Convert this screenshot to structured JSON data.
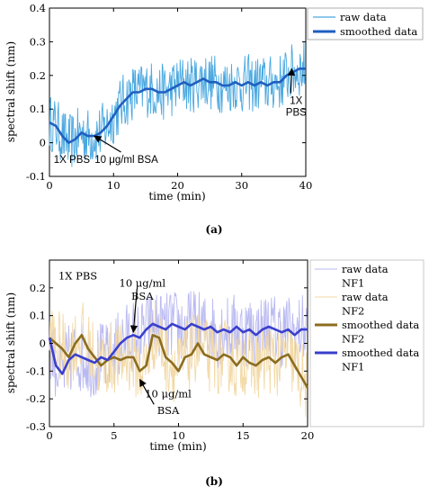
{
  "panel_a_caption": "(a)",
  "panel_b_caption": "(b)",
  "chart_data": [
    {
      "type": "line",
      "panel": "a",
      "xlabel": "time (min)",
      "ylabel": "spectral shift (nm)",
      "xlim": [
        0,
        40
      ],
      "ylim": [
        -0.1,
        0.4
      ],
      "xticks": [
        0,
        10,
        20,
        30,
        40
      ],
      "yticks": [
        -0.1,
        0,
        0.1,
        0.2,
        0.3,
        0.4
      ],
      "legend_position": "top-right",
      "x": [
        0,
        1,
        2,
        3,
        4,
        5,
        6,
        7,
        8,
        9,
        10,
        11,
        12,
        13,
        14,
        15,
        16,
        17,
        18,
        19,
        20,
        21,
        22,
        23,
        24,
        25,
        26,
        27,
        28,
        29,
        30,
        31,
        32,
        33,
        34,
        35,
        36,
        37,
        38,
        39,
        40
      ],
      "series": [
        {
          "name": "raw data",
          "color": "#4aa8e0",
          "style": "noisy",
          "values": [
            0.06,
            0.05,
            0.02,
            0.0,
            0.01,
            0.03,
            0.02,
            0.02,
            0.03,
            0.05,
            0.08,
            0.11,
            0.13,
            0.15,
            0.15,
            0.16,
            0.16,
            0.15,
            0.15,
            0.16,
            0.17,
            0.18,
            0.17,
            0.18,
            0.19,
            0.18,
            0.18,
            0.17,
            0.17,
            0.18,
            0.17,
            0.18,
            0.17,
            0.18,
            0.17,
            0.18,
            0.18,
            0.2,
            0.21,
            0.22,
            0.22
          ]
        },
        {
          "name": "smoothed data",
          "color": "#1f5fbf",
          "style": "thick",
          "values": [
            0.06,
            0.05,
            0.02,
            0.0,
            0.01,
            0.03,
            0.02,
            0.02,
            0.03,
            0.05,
            0.08,
            0.11,
            0.13,
            0.15,
            0.15,
            0.16,
            0.16,
            0.15,
            0.15,
            0.16,
            0.17,
            0.18,
            0.17,
            0.18,
            0.19,
            0.18,
            0.18,
            0.17,
            0.17,
            0.18,
            0.17,
            0.18,
            0.17,
            0.18,
            0.17,
            0.18,
            0.18,
            0.2,
            0.21,
            0.22,
            0.22
          ]
        }
      ],
      "annotations": [
        {
          "text": "1X PBS",
          "x": 3.5,
          "y": -0.06
        },
        {
          "text": "10 μg/ml BSA",
          "x": 12,
          "y": -0.06,
          "arrow_to": [
            7,
            0.02
          ]
        },
        {
          "text": "1X",
          "x": 38.5,
          "y": 0.115,
          "arrow_to": [
            37.8,
            0.22
          ]
        },
        {
          "text": "PBS",
          "x": 38.5,
          "y": 0.08
        }
      ]
    },
    {
      "type": "line",
      "panel": "b",
      "xlabel": "time (min)",
      "ylabel": "spectral shift (nm)",
      "xlim": [
        0,
        20
      ],
      "ylim": [
        -0.3,
        0.3
      ],
      "xticks": [
        0,
        5,
        10,
        15,
        20
      ],
      "yticks": [
        -0.3,
        -0.2,
        -0.1,
        0,
        0.1,
        0.2
      ],
      "legend_position": "outside-right",
      "x": [
        0,
        0.5,
        1,
        1.5,
        2,
        2.5,
        3,
        3.5,
        4,
        4.5,
        5,
        5.5,
        6,
        6.5,
        7,
        7.5,
        8,
        8.5,
        9,
        9.5,
        10,
        10.5,
        11,
        11.5,
        12,
        12.5,
        13,
        13.5,
        14,
        14.5,
        15,
        15.5,
        16,
        16.5,
        17,
        17.5,
        18,
        18.5,
        19,
        19.5,
        20
      ],
      "series": [
        {
          "name": "raw data NF1",
          "color": "#b9b9f2",
          "style": "noisy",
          "values": [
            0.02,
            -0.08,
            -0.11,
            -0.06,
            -0.04,
            -0.05,
            -0.06,
            -0.07,
            -0.05,
            -0.06,
            -0.03,
            0.0,
            0.02,
            0.03,
            0.02,
            0.05,
            0.07,
            0.06,
            0.05,
            0.07,
            0.06,
            0.05,
            0.07,
            0.06,
            0.05,
            0.06,
            0.04,
            0.05,
            0.04,
            0.06,
            0.04,
            0.05,
            0.03,
            0.05,
            0.06,
            0.05,
            0.04,
            0.05,
            0.03,
            0.05,
            0.05
          ]
        },
        {
          "name": "raw data NF2",
          "color": "#f2d9a6",
          "style": "noisy",
          "values": [
            0.02,
            0.0,
            -0.02,
            -0.05,
            0.0,
            0.03,
            -0.02,
            -0.05,
            -0.08,
            -0.06,
            -0.05,
            -0.06,
            -0.05,
            -0.05,
            -0.1,
            -0.08,
            0.03,
            0.02,
            -0.05,
            -0.07,
            -0.1,
            -0.05,
            -0.04,
            0.0,
            -0.04,
            -0.05,
            -0.06,
            -0.04,
            -0.05,
            -0.08,
            -0.05,
            -0.07,
            -0.08,
            -0.06,
            -0.05,
            -0.07,
            -0.05,
            -0.04,
            -0.08,
            -0.12,
            -0.16
          ]
        },
        {
          "name": "smoothed data NF2",
          "color": "#8c6d1f",
          "style": "thick",
          "values": [
            0.02,
            0.0,
            -0.02,
            -0.05,
            0.0,
            0.03,
            -0.02,
            -0.05,
            -0.08,
            -0.06,
            -0.05,
            -0.06,
            -0.05,
            -0.05,
            -0.1,
            -0.08,
            0.03,
            0.02,
            -0.05,
            -0.07,
            -0.1,
            -0.05,
            -0.04,
            0.0,
            -0.04,
            -0.05,
            -0.06,
            -0.04,
            -0.05,
            -0.08,
            -0.05,
            -0.07,
            -0.08,
            -0.06,
            -0.05,
            -0.07,
            -0.05,
            -0.04,
            -0.08,
            -0.12,
            -0.16
          ]
        },
        {
          "name": "smoothed data NF1",
          "color": "#3a3fcc",
          "style": "thick",
          "values": [
            0.02,
            -0.08,
            -0.11,
            -0.06,
            -0.04,
            -0.05,
            -0.06,
            -0.07,
            -0.05,
            -0.06,
            -0.03,
            0.0,
            0.02,
            0.03,
            0.02,
            0.05,
            0.07,
            0.06,
            0.05,
            0.07,
            0.06,
            0.05,
            0.07,
            0.06,
            0.05,
            0.06,
            0.04,
            0.05,
            0.04,
            0.06,
            0.04,
            0.05,
            0.03,
            0.05,
            0.06,
            0.05,
            0.04,
            0.05,
            0.03,
            0.05,
            0.05
          ]
        }
      ],
      "legend_entries": [
        {
          "label": "raw data",
          "color": "#b9b9f2",
          "width": 1
        },
        {
          "label": "NF1",
          "color": null,
          "width": 0
        },
        {
          "label": "raw data",
          "color": "#f2d9a6",
          "width": 1
        },
        {
          "label": "NF2",
          "color": null,
          "width": 0
        },
        {
          "label": "smoothed data",
          "color": "#8c6d1f",
          "width": 3
        },
        {
          "label": "NF2",
          "color": null,
          "width": 0
        },
        {
          "label": "smoothed data",
          "color": "#3a3fcc",
          "width": 3
        },
        {
          "label": "NF1",
          "color": null,
          "width": 0
        }
      ],
      "annotations": [
        {
          "text": "1X PBS",
          "x": 2.2,
          "y": 0.23
        },
        {
          "text": "10 μg/ml",
          "x": 7.2,
          "y": 0.205
        },
        {
          "text": "BSA",
          "x": 7.2,
          "y": 0.158,
          "arrow_to": [
            6.5,
            0.04
          ]
        },
        {
          "text": "10 μg/ml",
          "x": 9.2,
          "y": -0.195,
          "arrow_from": [
            8.1,
            -0.22
          ],
          "arrow_to": [
            7.0,
            -0.13
          ]
        },
        {
          "text": "BSA",
          "x": 9.2,
          "y": -0.255
        }
      ]
    }
  ]
}
